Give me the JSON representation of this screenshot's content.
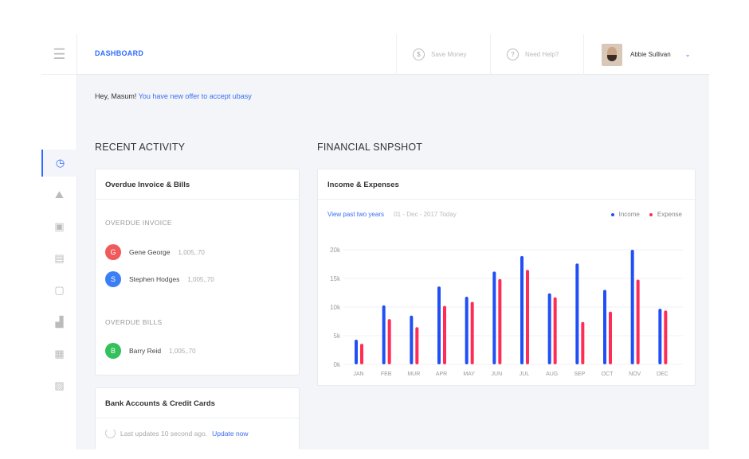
{
  "header": {
    "title": "DASHBOARD",
    "save_money": "Save Money",
    "need_help": "Need Help?",
    "user_name": "Abbie Sullivan"
  },
  "greeting": {
    "prefix": "Hey, Masum!",
    "link": "You have new offer to accept ubasy"
  },
  "sidebar": {
    "items": [
      "dashboard-icon",
      "chart-area-icon",
      "image-icon",
      "document-icon",
      "note-icon",
      "growth-icon",
      "calculator-icon",
      "cards-icon"
    ],
    "active": 0
  },
  "recent": {
    "title": "RECENT ACTIVITY",
    "card_title": "Overdue Invoice & Bills",
    "invoice_label": "OVERDUE INVOICE",
    "invoices": [
      {
        "initial": "G",
        "name": "Gene George",
        "amount": "1,005,.70",
        "color": "#f05a5a"
      },
      {
        "initial": "S",
        "name": "Stephen Hodges",
        "amount": "1,005,.70",
        "color": "#3b7ef5"
      }
    ],
    "bills_label": "OVERDUE BILLS",
    "bills": [
      {
        "initial": "B",
        "name": "Barry Reid",
        "amount": "1,005,.70",
        "color": "#34c05a"
      }
    ],
    "bank_title": "Bank Accounts & Credit Cards",
    "bank_status": "Last updates 10 second ago.",
    "bank_link": "Update now"
  },
  "financial": {
    "title": "FINANCIAL SNPSHOT",
    "card_title": "Income & Expenses",
    "link": "View past two years",
    "date": "01 - Dec - 2017 Today"
  },
  "colors": {
    "accent": "#2f6bff",
    "income": "#1f4ff5",
    "expense": "#ff2d55"
  },
  "chart_data": {
    "type": "bar",
    "categories": [
      "JAN",
      "FEB",
      "MUR",
      "APR",
      "MAY",
      "JUN",
      "JUL",
      "AUG",
      "SEP",
      "OCT",
      "NOV",
      "DEC"
    ],
    "series": [
      {
        "name": "Income",
        "values": [
          4.3,
          10.3,
          8.5,
          13.6,
          11.8,
          16.2,
          18.9,
          12.4,
          17.6,
          13.0,
          20.0,
          9.7
        ]
      },
      {
        "name": "Expense",
        "values": [
          3.6,
          7.9,
          6.5,
          10.2,
          10.9,
          14.9,
          16.5,
          11.7,
          7.4,
          9.2,
          14.8,
          9.4
        ]
      }
    ],
    "yticks": [
      "0k",
      "5k",
      "10k",
      "15k",
      "20k"
    ],
    "ylim": [
      0,
      20
    ],
    "grid": true,
    "legend": "top-right"
  }
}
